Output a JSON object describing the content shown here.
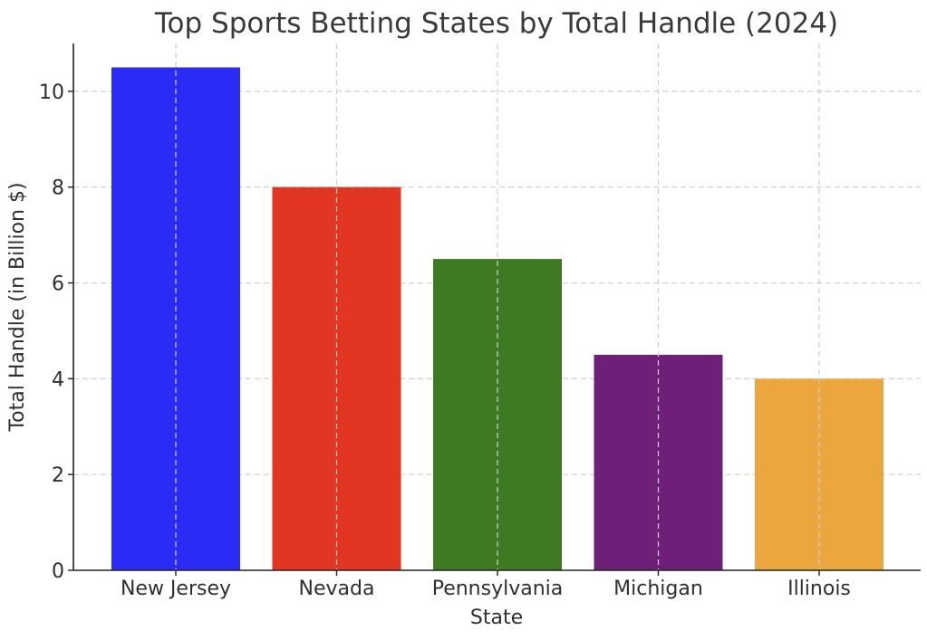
{
  "chart_data": {
    "type": "bar",
    "title": "Top Sports Betting States by Total Handle (2024)",
    "xlabel": "State",
    "ylabel": "Total Handle (in Billion $)",
    "categories": [
      "New Jersey",
      "Nevada",
      "Pennsylvania",
      "Michigan",
      "Illinois"
    ],
    "values": [
      10.5,
      8,
      6.5,
      4.5,
      4
    ],
    "colors": [
      "#2b2bf5",
      "#e03622",
      "#3d7a22",
      "#6e1f78",
      "#eca63e"
    ],
    "yticks": [
      0,
      2,
      4,
      6,
      8,
      10
    ],
    "ylim": [
      0,
      11
    ],
    "grid": true
  }
}
